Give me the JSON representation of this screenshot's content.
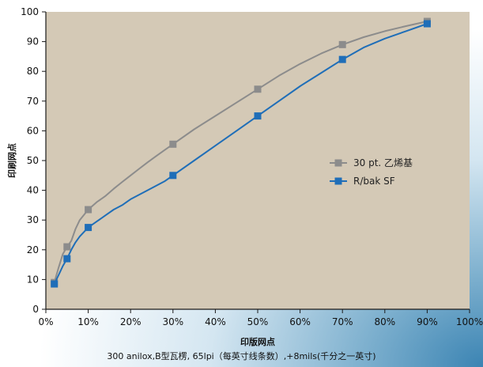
{
  "chart_data": {
    "type": "line",
    "xlabel": "印版网点",
    "ylabel": "印刷网点",
    "caption": "300 anilox,B型瓦楞, 65lpi（每英寸线条数）,+8mils(千分之一英寸)",
    "xlim": [
      0,
      100
    ],
    "ylim": [
      0,
      100
    ],
    "x_ticks": [
      "0%",
      "10%",
      "20%",
      "30%",
      "40%",
      "50%",
      "60%",
      "70%",
      "80%",
      "90%",
      "100%"
    ],
    "y_ticks": [
      "0",
      "10",
      "20",
      "30",
      "40",
      "50",
      "60",
      "70",
      "80",
      "90",
      "100"
    ],
    "legend_position": "right",
    "series": [
      {
        "name": "30 pt. 乙烯基",
        "color": "#8c8c8c",
        "marker": "square",
        "x": [
          2,
          5,
          10,
          30,
          50,
          70,
          90
        ],
        "y": [
          9,
          21,
          33.5,
          55.5,
          74,
          89,
          96.8
        ],
        "curve_x": [
          2,
          3,
          4,
          5,
          6,
          7,
          8,
          10,
          12,
          14,
          16,
          18,
          20,
          22,
          24,
          26,
          28,
          30,
          35,
          40,
          45,
          50,
          55,
          60,
          65,
          70,
          75,
          80,
          85,
          90
        ],
        "curve_y": [
          9,
          14,
          18.5,
          21,
          23,
          27,
          30,
          33.5,
          36,
          38,
          40.5,
          42.8,
          45,
          47.2,
          49.4,
          51.5,
          53.5,
          55.5,
          60.5,
          65,
          69.5,
          74,
          78.5,
          82.5,
          86,
          89,
          91.5,
          93.5,
          95.2,
          96.8
        ]
      },
      {
        "name": "R/bak SF",
        "color": "#1f6eb8",
        "marker": "square",
        "x": [
          2,
          5,
          10,
          30,
          50,
          70,
          90
        ],
        "y": [
          8.5,
          17,
          27.5,
          45,
          65,
          84,
          96
        ],
        "curve_x": [
          2,
          3,
          4,
          5,
          6,
          7,
          8,
          10,
          12,
          14,
          16,
          18,
          20,
          24,
          28,
          30,
          35,
          40,
          45,
          50,
          55,
          60,
          65,
          70,
          75,
          80,
          85,
          90
        ],
        "curve_y": [
          8.5,
          11.5,
          14.5,
          17,
          20,
          22.5,
          24.5,
          27.5,
          29.5,
          31.5,
          33.5,
          35,
          37,
          40,
          43,
          45,
          50,
          55,
          60,
          65,
          70,
          75,
          79.5,
          84,
          88,
          91,
          93.5,
          96
        ]
      }
    ]
  }
}
